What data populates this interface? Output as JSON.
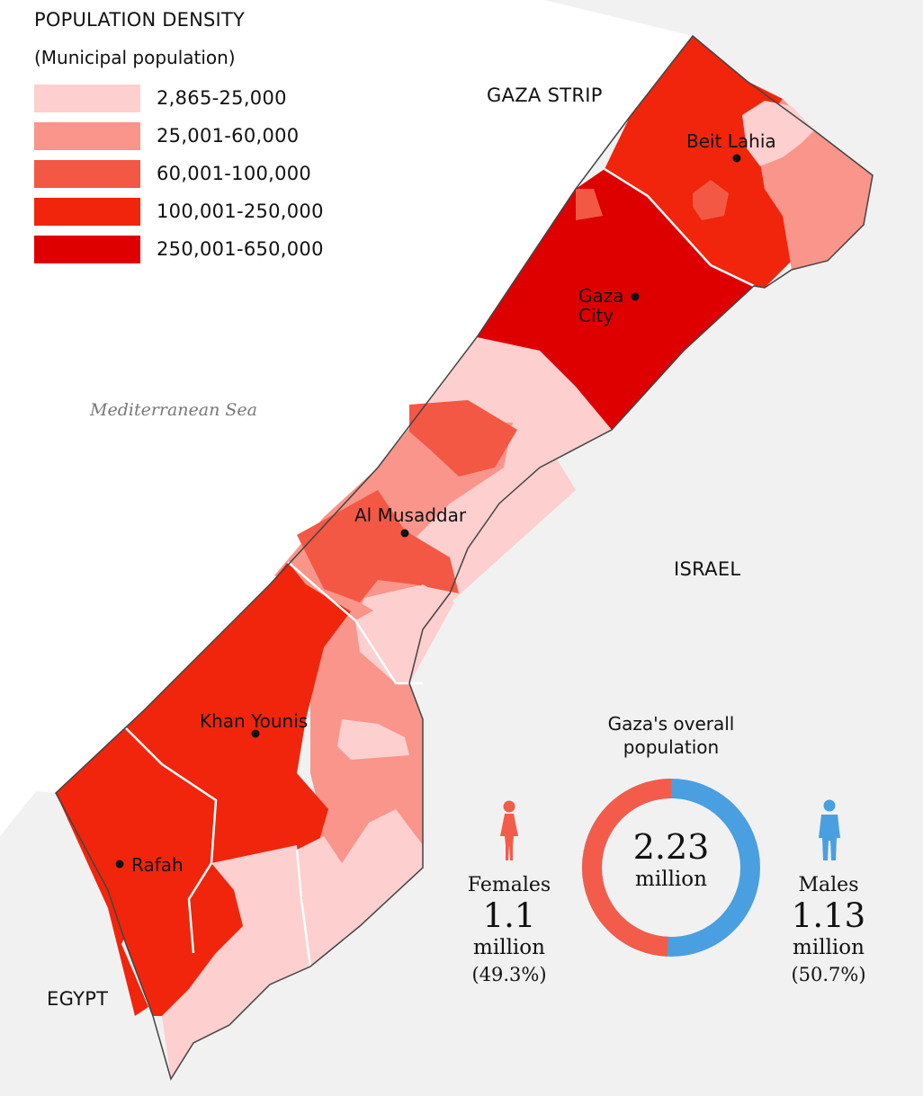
{
  "legend": {
    "title": "POPULATION DENSITY",
    "subtitle": "(Municipal population)",
    "items": [
      {
        "label": "2,865-25,000",
        "color": "#fdcfcf"
      },
      {
        "label": "25,001-60,000",
        "color": "#f9958a"
      },
      {
        "label": "60,001-100,000",
        "color": "#f35844"
      },
      {
        "label": "100,001-250,000",
        "color": "#f0250b"
      },
      {
        "label": "250,001-650,000",
        "color": "#de0000"
      }
    ]
  },
  "regions": {
    "gaza_strip": "GAZA STRIP",
    "israel": "ISRAEL",
    "egypt": "EGYPT",
    "sea": "Mediterranean Sea"
  },
  "cities": {
    "beit_lahia": "Beit Lahia",
    "gaza_city": "Gaza City",
    "al_musaddar": "Al Musaddar",
    "khan_younis": "Khan Younis",
    "rafah": "Rafah"
  },
  "stats": {
    "title": "Gaza's overall population",
    "total_value": "2.23",
    "total_unit": "million",
    "females": {
      "label": "Females",
      "value": "1.1",
      "unit": "million",
      "percent": "(49.3%)",
      "share": 0.493,
      "color": "#f35c4a"
    },
    "males": {
      "label": "Males",
      "value": "1.13",
      "unit": "million",
      "percent": "(50.7%)",
      "share": 0.507,
      "color": "#4a9fe0"
    }
  },
  "colors": {
    "land_outside": "#f1f1f2",
    "sea": "#ffffff",
    "border": "#444444"
  }
}
